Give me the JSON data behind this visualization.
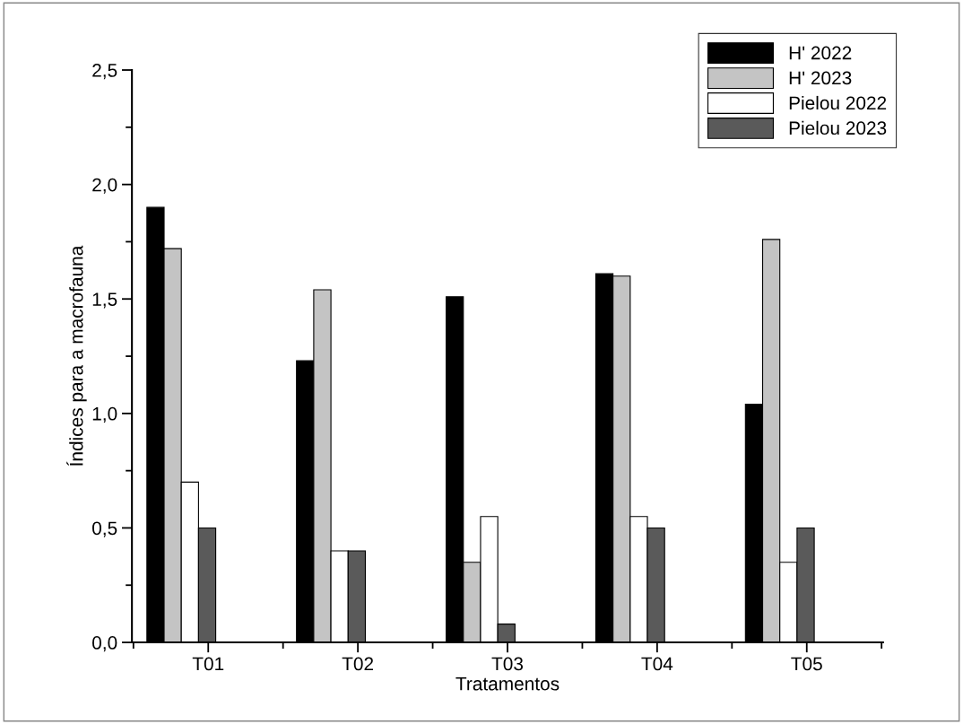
{
  "chart_data": {
    "type": "bar",
    "xlabel": "Tratamentos",
    "ylabel": "Índices para a macrofauna",
    "categories": [
      "T01",
      "T02",
      "T03",
      "T04",
      "T05"
    ],
    "series": [
      {
        "name": "H' 2022",
        "color": "#000000",
        "values": [
          1.9,
          1.23,
          1.51,
          1.61,
          1.04
        ]
      },
      {
        "name": "H' 2023",
        "color": "#c4c4c4",
        "values": [
          1.72,
          1.54,
          0.35,
          1.6,
          1.76
        ]
      },
      {
        "name": "Pielou 2022",
        "color": "#ffffff",
        "values": [
          0.7,
          0.4,
          0.55,
          0.55,
          0.35
        ]
      },
      {
        "name": "Pielou 2023",
        "color": "#5a5a5a",
        "values": [
          0.5,
          0.4,
          0.08,
          0.5,
          0.5
        ]
      }
    ],
    "ylim": [
      0,
      2.5
    ],
    "yticks": [
      {
        "value": 0,
        "label": "0,0"
      },
      {
        "value": 0.5,
        "label": "0,5"
      },
      {
        "value": 1.0,
        "label": "1,0"
      },
      {
        "value": 1.5,
        "label": "1,5"
      },
      {
        "value": 2.0,
        "label": "2,0"
      },
      {
        "value": 2.5,
        "label": "2,5"
      }
    ],
    "legend": "top right",
    "grid": false
  }
}
